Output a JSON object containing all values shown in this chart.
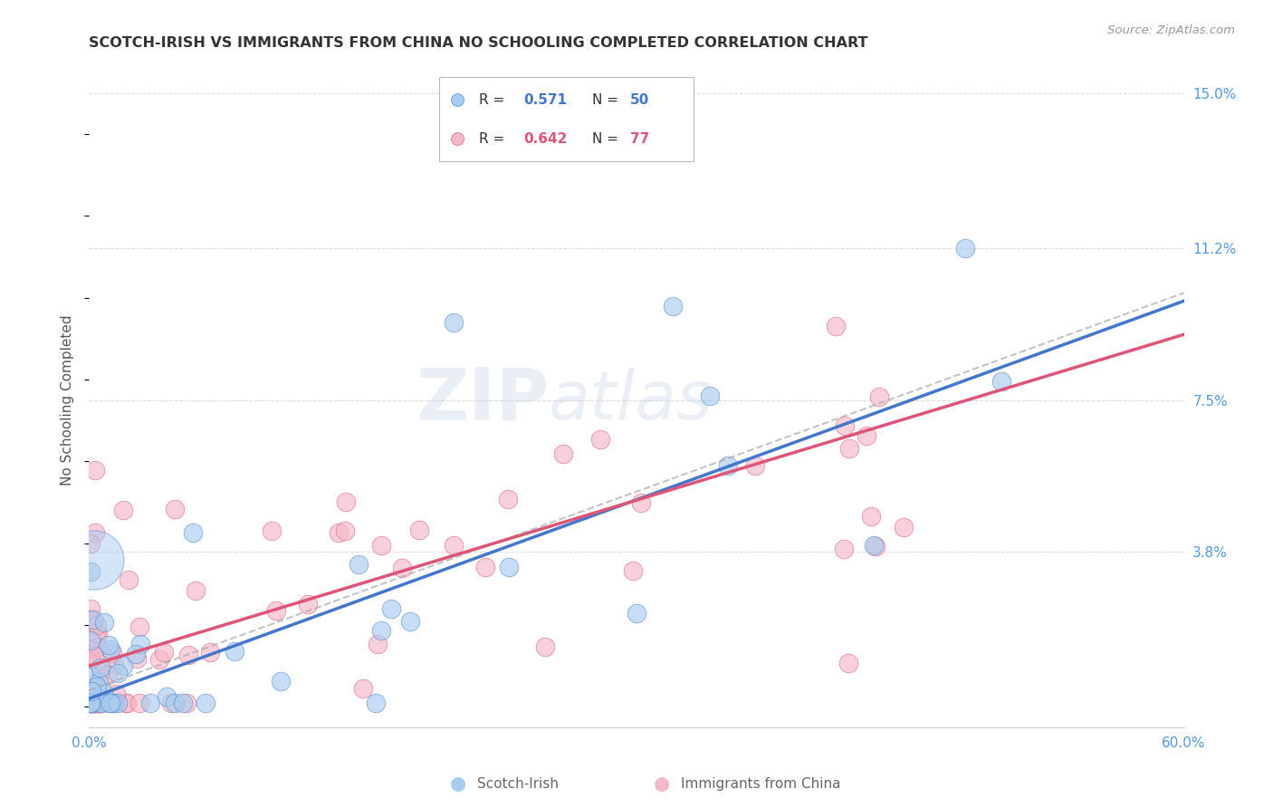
{
  "title": "SCOTCH-IRISH VS IMMIGRANTS FROM CHINA NO SCHOOLING COMPLETED CORRELATION CHART",
  "source": "Source: ZipAtlas.com",
  "ylabel": "No Schooling Completed",
  "xlim": [
    0.0,
    0.6
  ],
  "ylim": [
    -0.005,
    0.155
  ],
  "ytick_vals": [
    0.0,
    0.038,
    0.075,
    0.112,
    0.15
  ],
  "ytick_labels": [
    "",
    "3.8%",
    "7.5%",
    "11.2%",
    "15.0%"
  ],
  "xtick_vals": [
    0.0,
    0.12,
    0.24,
    0.36,
    0.48,
    0.6
  ],
  "xtick_labels": [
    "0.0%",
    "",
    "",
    "",
    "",
    "60.0%"
  ],
  "legend1_r": "0.571",
  "legend1_n": "50",
  "legend2_r": "0.642",
  "legend2_n": "77",
  "series1_fill": "#A8CCF0",
  "series2_fill": "#F5B8C8",
  "series1_edge": "#5588CC",
  "series2_edge": "#E06080",
  "line1_color": "#4477CC",
  "line2_color": "#DD5577",
  "line_dash_color": "#AAAAAA",
  "background_color": "#FFFFFF",
  "grid_color": "#DDDDDD",
  "title_color": "#333333",
  "tick_color": "#5599DD",
  "watermark_color": "#CCDDF0",
  "source_color": "#999999",
  "ylabel_color": "#555555",
  "legend_label_color": "#333333",
  "bottom_label_color": "#666666",
  "line1_intercept": 0.002,
  "line1_slope": 0.162,
  "line2_intercept": 0.01,
  "line2_slope": 0.135
}
